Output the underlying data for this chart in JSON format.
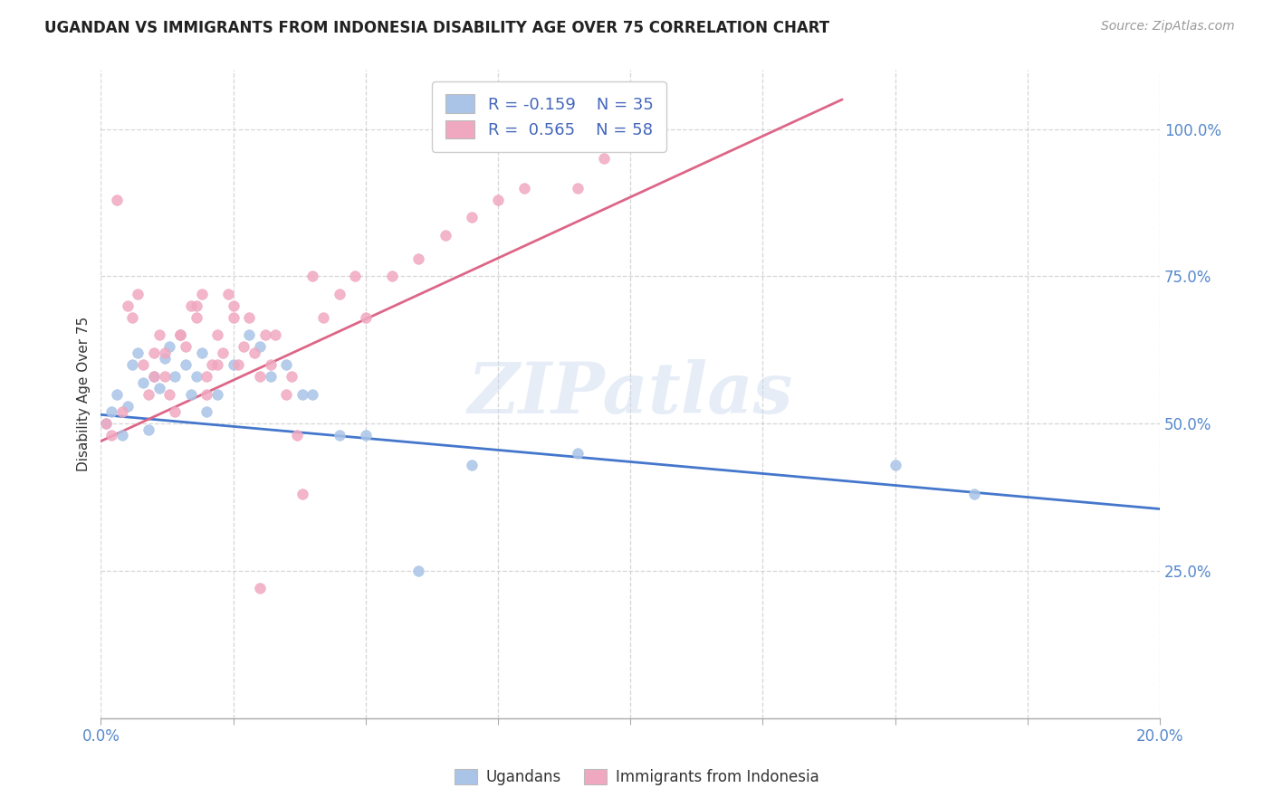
{
  "title": "UGANDAN VS IMMIGRANTS FROM INDONESIA DISABILITY AGE OVER 75 CORRELATION CHART",
  "source": "Source: ZipAtlas.com",
  "ylabel": "Disability Age Over 75",
  "xlim": [
    0.0,
    0.2
  ],
  "ylim": [
    0.0,
    1.1
  ],
  "xtick_positions": [
    0.0,
    0.025,
    0.05,
    0.075,
    0.1,
    0.125,
    0.15,
    0.175,
    0.2
  ],
  "xticklabels": [
    "0.0%",
    "",
    "",
    "",
    "",
    "",
    "",
    "",
    "20.0%"
  ],
  "ytick_positions": [
    0.25,
    0.5,
    0.75,
    1.0
  ],
  "ytick_labels": [
    "25.0%",
    "50.0%",
    "75.0%",
    "100.0%"
  ],
  "color_ugandan": "#aac4e8",
  "color_indonesia": "#f0a8c0",
  "color_line_ugandan": "#4477cc",
  "color_line_indonesia": "#dd6688",
  "label_ugandan": "Ugandans",
  "label_indonesia": "Immigrants from Indonesia",
  "legend_r1": "R = -0.159",
  "legend_n1": "N = 35",
  "legend_r2": "R =  0.565",
  "legend_n2": "N = 58",
  "watermark": "ZIPatlas",
  "ugandan_x": [
    0.001,
    0.002,
    0.003,
    0.004,
    0.005,
    0.006,
    0.007,
    0.008,
    0.009,
    0.01,
    0.011,
    0.012,
    0.013,
    0.014,
    0.015,
    0.016,
    0.017,
    0.018,
    0.019,
    0.02,
    0.022,
    0.025,
    0.028,
    0.03,
    0.032,
    0.035,
    0.038,
    0.04,
    0.045,
    0.05,
    0.06,
    0.07,
    0.09,
    0.15,
    0.165
  ],
  "ugandan_y": [
    0.5,
    0.52,
    0.55,
    0.48,
    0.53,
    0.6,
    0.62,
    0.57,
    0.49,
    0.58,
    0.56,
    0.61,
    0.63,
    0.58,
    0.65,
    0.6,
    0.55,
    0.58,
    0.62,
    0.52,
    0.55,
    0.6,
    0.65,
    0.63,
    0.58,
    0.6,
    0.55,
    0.55,
    0.48,
    0.48,
    0.25,
    0.43,
    0.45,
    0.43,
    0.38
  ],
  "indonesia_x": [
    0.001,
    0.002,
    0.003,
    0.004,
    0.005,
    0.006,
    0.007,
    0.008,
    0.009,
    0.01,
    0.011,
    0.012,
    0.013,
    0.014,
    0.015,
    0.016,
    0.017,
    0.018,
    0.019,
    0.02,
    0.021,
    0.022,
    0.023,
    0.024,
    0.025,
    0.026,
    0.027,
    0.028,
    0.029,
    0.03,
    0.031,
    0.032,
    0.033,
    0.035,
    0.036,
    0.037,
    0.038,
    0.04,
    0.042,
    0.045,
    0.048,
    0.05,
    0.055,
    0.06,
    0.065,
    0.07,
    0.075,
    0.08,
    0.09,
    0.095,
    0.01,
    0.012,
    0.015,
    0.018,
    0.02,
    0.022,
    0.025,
    0.03
  ],
  "indonesia_y": [
    0.5,
    0.48,
    0.88,
    0.52,
    0.7,
    0.68,
    0.72,
    0.6,
    0.55,
    0.62,
    0.65,
    0.58,
    0.55,
    0.52,
    0.65,
    0.63,
    0.7,
    0.68,
    0.72,
    0.58,
    0.6,
    0.65,
    0.62,
    0.72,
    0.68,
    0.6,
    0.63,
    0.68,
    0.62,
    0.58,
    0.65,
    0.6,
    0.65,
    0.55,
    0.58,
    0.48,
    0.38,
    0.75,
    0.68,
    0.72,
    0.75,
    0.68,
    0.75,
    0.78,
    0.82,
    0.85,
    0.88,
    0.9,
    0.9,
    0.95,
    0.58,
    0.62,
    0.65,
    0.7,
    0.55,
    0.6,
    0.7,
    0.22
  ],
  "ugandan_line_x0": 0.0,
  "ugandan_line_y0": 0.515,
  "ugandan_line_x1": 0.2,
  "ugandan_line_y1": 0.355,
  "indonesia_line_x0": 0.0,
  "indonesia_line_y0": 0.47,
  "indonesia_line_x1": 0.14,
  "indonesia_line_y1": 1.05
}
